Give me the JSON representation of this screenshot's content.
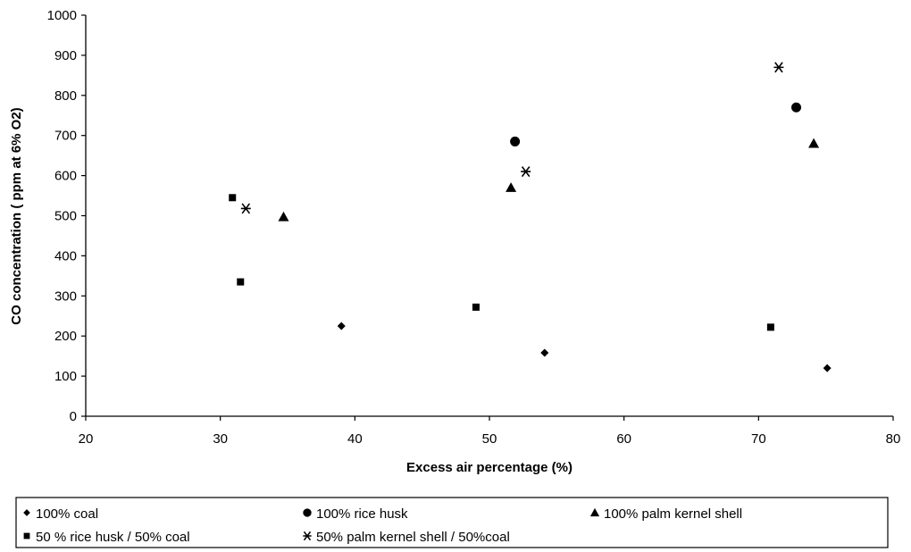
{
  "chart_data": {
    "type": "scatter",
    "xlabel": "Excess air percentage (%)",
    "ylabel": "CO concentration ( ppm at 6% O2)",
    "xlim": [
      20,
      80
    ],
    "ylim": [
      0,
      1000
    ],
    "x_ticks": [
      "20",
      "30",
      "40",
      "50",
      "60",
      "70",
      "80"
    ],
    "y_ticks": [
      "0",
      "100",
      "200",
      "300",
      "400",
      "500",
      "600",
      "700",
      "800",
      "900",
      "1000"
    ],
    "grid": false,
    "legend_position": "bottom",
    "series": [
      {
        "name": "100% coal",
        "marker": "diamond",
        "points": [
          [
            39,
            225
          ],
          [
            54.1,
            158
          ],
          [
            75.1,
            120
          ]
        ]
      },
      {
        "name": "100% rice husk",
        "marker": "circle",
        "points": [
          [
            51.9,
            685
          ],
          [
            72.8,
            770
          ]
        ]
      },
      {
        "name": "100% palm kernel shell",
        "marker": "triangle",
        "points": [
          [
            34.7,
            497
          ],
          [
            51.6,
            570
          ],
          [
            74.1,
            680
          ]
        ]
      },
      {
        "name": "50 % rice husk / 50% coal",
        "marker": "square",
        "points": [
          [
            30.9,
            545
          ],
          [
            31.5,
            335
          ],
          [
            49,
            272
          ],
          [
            70.9,
            222
          ]
        ]
      },
      {
        "name": "50% palm kernel shell / 50%coal",
        "marker": "star",
        "points": [
          [
            31.9,
            518
          ],
          [
            52.7,
            610
          ],
          [
            71.5,
            870
          ]
        ]
      }
    ]
  }
}
